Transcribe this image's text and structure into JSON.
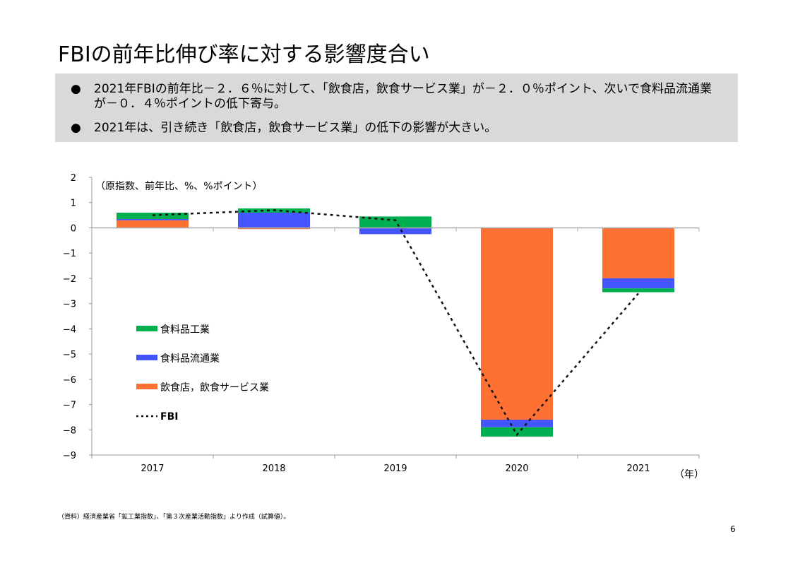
{
  "title": "FBIの前年比伸び率に対する影響度合い",
  "bullets": [
    "2021年FBIの前年比－２．６％に対して、「飲食店，飲食サービス業」が－２．０％ポイント、次いで食料品流通業が－０．４％ポイントの低下寄与。",
    "2021年は、引き続き「飲食店，飲食サービス業」の低下の影響が大きい。"
  ],
  "bullet_mark": "●",
  "source": "（資料）経済産業省「鉱工業指数」、「第３次産業活動指数」より作成（試算値）。",
  "page_number": "6",
  "chart_data": {
    "type": "bar",
    "stacked": true,
    "unit_label": "（原指数、前年比、%、%ポイント）",
    "xlabel": "（年）",
    "categories": [
      "2017",
      "2018",
      "2019",
      "2020",
      "2021"
    ],
    "ylim": [
      -9,
      2
    ],
    "yticks": [
      "2",
      "1",
      "0",
      "−1",
      "−2",
      "−3",
      "−4",
      "−5",
      "−6",
      "−7",
      "−8",
      "−9"
    ],
    "series": [
      {
        "name": "飲食店，飲食サービス業",
        "color": "#ff7033",
        "values": [
          0.3,
          -0.05,
          0.0,
          -7.6,
          -2.0
        ]
      },
      {
        "name": "食料品流通業",
        "color": "#4455ff",
        "values": [
          0.05,
          0.6,
          -0.25,
          -0.3,
          -0.4
        ]
      },
      {
        "name": "食料品工業",
        "color": "#00b050",
        "values": [
          0.25,
          0.17,
          0.45,
          -0.37,
          -0.15
        ]
      }
    ],
    "line": {
      "name": "FBI",
      "values": [
        0.5,
        0.7,
        0.3,
        -8.2,
        -2.6
      ]
    },
    "legend": [
      "食料品工業",
      "食料品流通業",
      "飲食店，飲食サービス業",
      "FBI"
    ],
    "legend_position": "left-middle"
  }
}
